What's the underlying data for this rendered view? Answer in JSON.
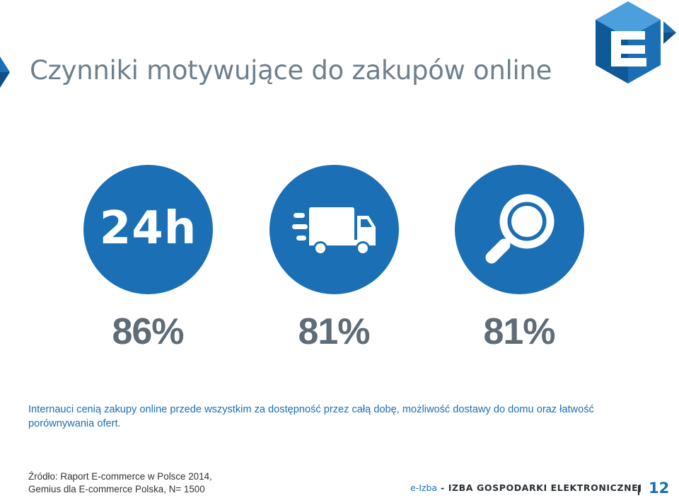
{
  "slide": {
    "title": "Czynniki motywujące do zakupów online"
  },
  "colors": {
    "accent": "#1a6fb5",
    "title": "#6f7f8c",
    "stat": "#5f6b75"
  },
  "factors": [
    {
      "icon": "24h-icon",
      "icon_text": "24h",
      "value": "86%"
    },
    {
      "icon": "delivery-truck-icon",
      "value": "81%"
    },
    {
      "icon": "magnifier-icon",
      "value": "81%"
    }
  ],
  "description": "Internauci cenią zakupy online przede wszystkim za dostępność przez całą dobę, możliwość dostawy do domu oraz łatwość porównywania ofert.",
  "source": {
    "line1": "Źródło: Raport E-commerce w Polsce 2014,",
    "line2": "Gemius dla E-commerce Polska, N= 1500"
  },
  "footer": {
    "brand_prefix": "e-Izba",
    "brand_separator": " - ",
    "brand_org": "IZBA GOSPODARKI ELEKTRONICZNEJ",
    "page_number": "12"
  }
}
